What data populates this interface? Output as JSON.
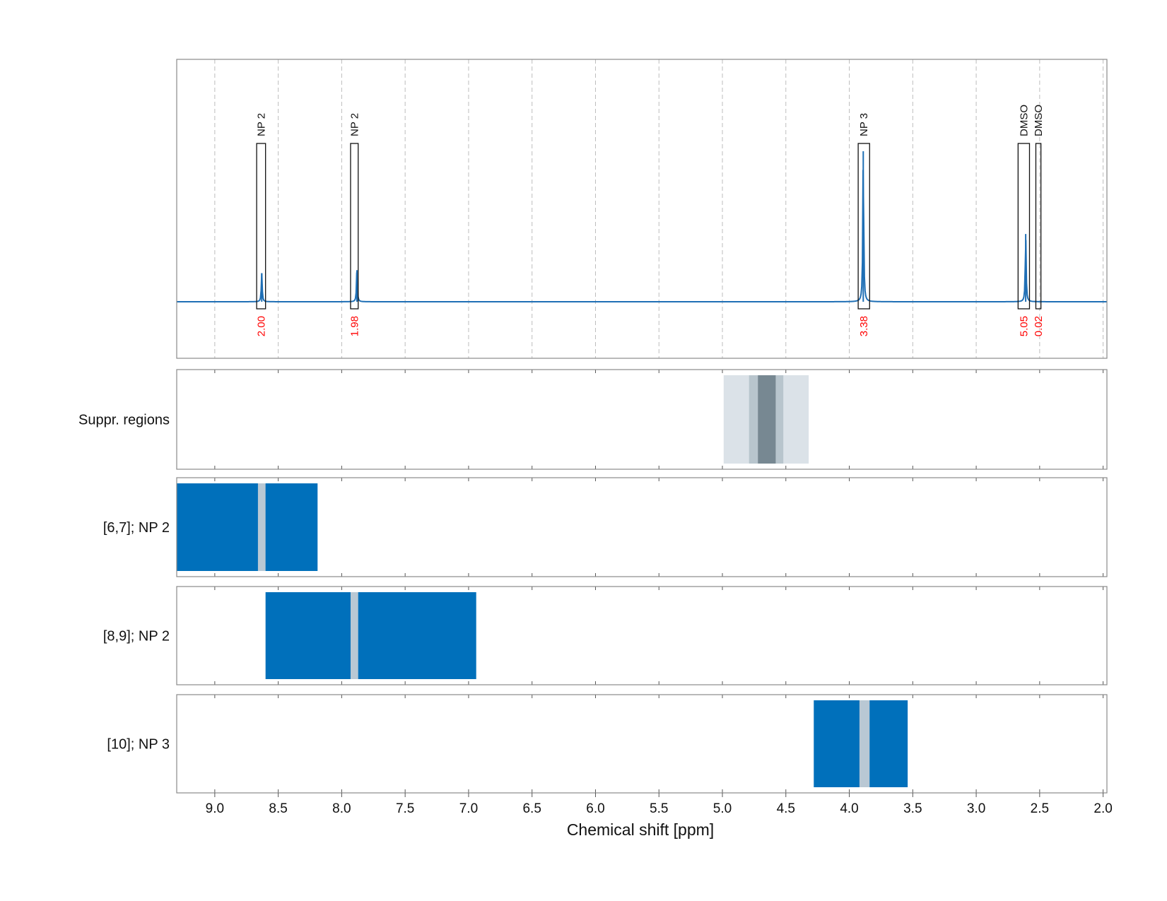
{
  "chart_data": {
    "type": "nmr-spectrum-with-region-panels",
    "xlabel": "Chemical shift [ppm]",
    "x_reversed": true,
    "xlim": [
      9.3,
      1.97
    ],
    "x_ticks": [
      9.0,
      8.5,
      8.0,
      7.5,
      7.0,
      6.5,
      6.0,
      5.5,
      5.0,
      4.5,
      4.0,
      3.5,
      3.0,
      2.5,
      2.0
    ],
    "x_tick_labels": [
      "9.0",
      "8.5",
      "8.0",
      "7.5",
      "7.0",
      "6.5",
      "6.0",
      "5.5",
      "5.0",
      "4.5",
      "4.0",
      "3.5",
      "3.0",
      "2.5",
      "2.0"
    ],
    "grid": true,
    "spectrum": {
      "color": "#1f6fb5",
      "baseline_y": 0,
      "peaks": [
        {
          "ppm": 8.63,
          "height": 0.19
        },
        {
          "ppm": 7.88,
          "height": 0.21
        },
        {
          "ppm": 3.89,
          "height": 1.0
        },
        {
          "ppm": 2.61,
          "height": 0.45
        }
      ]
    },
    "annotations": [
      {
        "label": "NP 2",
        "integral": "2.00",
        "x_range": [
          8.67,
          8.6
        ]
      },
      {
        "label": "NP 2",
        "integral": "1.98",
        "x_range": [
          7.93,
          7.87
        ]
      },
      {
        "label": "NP 3",
        "integral": "3.38",
        "x_range": [
          3.93,
          3.84
        ]
      },
      {
        "label": "DMSO",
        "integral": "5.05",
        "x_range": [
          2.67,
          2.58
        ]
      },
      {
        "label": "DMSO",
        "integral": "0.02",
        "x_range": [
          2.53,
          2.49
        ]
      }
    ],
    "region_panels": [
      {
        "label": "Suppr. regions",
        "bands": [
          {
            "x_range": [
              4.99,
              4.32
            ],
            "color": "#dbe2e8"
          },
          {
            "x_range": [
              4.79,
              4.52
            ],
            "color": "#b8c5cd"
          },
          {
            "x_range": [
              4.72,
              4.58
            ],
            "color": "#778892"
          }
        ]
      },
      {
        "label": "[6,7]; NP 2",
        "bands": [
          {
            "x_range": [
              9.3,
              8.19
            ],
            "color": "#0070bb"
          },
          {
            "x_range": [
              8.66,
              8.6
            ],
            "color": "#b9c8d4"
          }
        ]
      },
      {
        "label": "[8,9]; NP 2",
        "bands": [
          {
            "x_range": [
              8.6,
              6.94
            ],
            "color": "#0070bb"
          },
          {
            "x_range": [
              7.93,
              7.87
            ],
            "color": "#b9c8d4"
          }
        ]
      },
      {
        "label": "[10]; NP 3",
        "bands": [
          {
            "x_range": [
              4.28,
              3.54
            ],
            "color": "#0070bb"
          },
          {
            "x_range": [
              3.92,
              3.84
            ],
            "color": "#b9c8d4"
          }
        ]
      }
    ]
  }
}
